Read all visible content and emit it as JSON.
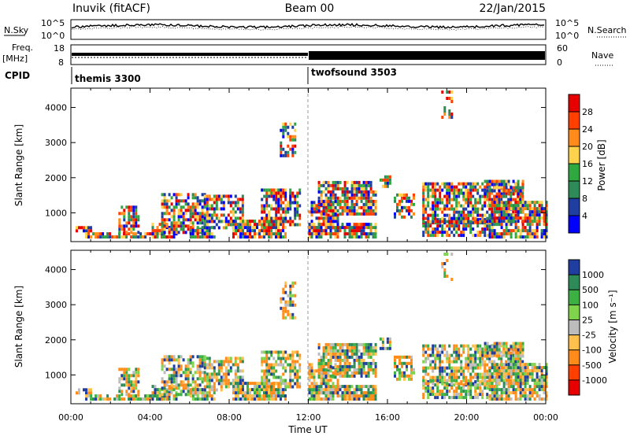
{
  "header": {
    "station": "Inuvik (fitACF)",
    "beam": "Beam 00",
    "date": "22/Jan/2015"
  },
  "noise_panel": {
    "left_label": "N.Sky",
    "right_label": "N.Search",
    "ticks": [
      "10^5",
      "10^0"
    ]
  },
  "freq_panel": {
    "left_label_1": "Freq.",
    "left_label_2": "[MHz]",
    "right_label": "Nave",
    "left_ticks": [
      "18",
      "8"
    ],
    "right_ticks": [
      "60",
      "0"
    ]
  },
  "cpid_panel": {
    "label": "CPID",
    "modes": [
      "themis 3300",
      "twofsound 3503"
    ]
  },
  "chart_data": [
    {
      "type": "heatmap",
      "name": "power",
      "ylabel": "Slant Range [km]",
      "y_ticks": [
        1000,
        2000,
        3000,
        4000
      ],
      "ylim": [
        180,
        4550
      ],
      "colorbar_label": "Power [dB]",
      "colorbar_ticks": [
        "28",
        "24",
        "20",
        "16",
        "12",
        "8",
        "4"
      ],
      "colorbar_colors": [
        "#e60000",
        "#ff4000",
        "#ff8c1a",
        "#ffd24d",
        "#2fa840",
        "#2e8b57",
        "#1f3ea0",
        "#0000ff"
      ]
    },
    {
      "type": "heatmap",
      "name": "velocity",
      "ylabel": "Slant Range [km]",
      "y_ticks": [
        1000,
        2000,
        3000,
        4000
      ],
      "ylim": [
        180,
        4550
      ],
      "colorbar_label": "Velocity [m s⁻¹]",
      "colorbar_ticks": [
        "1000",
        "500",
        "100",
        "25",
        "-25",
        "-100",
        "-500",
        "-1000"
      ],
      "colorbar_colors": [
        "#1f3ea0",
        "#2e8b57",
        "#3cb043",
        "#7fd44c",
        "#bcbcbc",
        "#ffc04d",
        "#ff8c1a",
        "#ff4000",
        "#e60000"
      ]
    }
  ],
  "x_axis": {
    "label": "Time UT",
    "ticks": [
      "00:00",
      "04:00",
      "08:00",
      "12:00",
      "16:00",
      "20:00",
      "00:00"
    ]
  }
}
